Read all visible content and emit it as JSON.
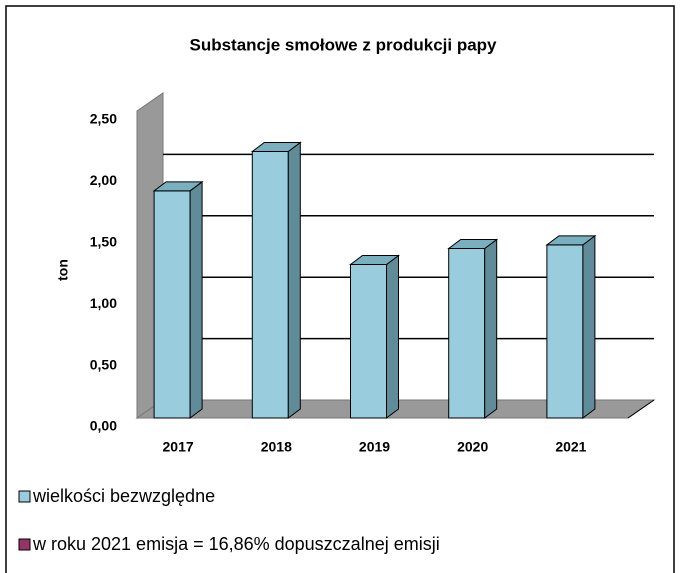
{
  "chart_data": {
    "type": "bar3d",
    "title": "Substancje smołowe z produkcji papy",
    "y_label": "ton",
    "categories": [
      "2017",
      "2018",
      "2019",
      "2020",
      "2021"
    ],
    "series": [
      {
        "name": "wielkości bezwzględne",
        "color": "#99ccdd",
        "values": [
          1.85,
          2.17,
          1.25,
          1.38,
          1.41
        ]
      },
      {
        "name": "w roku 2021 emisja = 16,86% dopuszczalnej emisji",
        "color": "#993366",
        "values": [
          null,
          null,
          null,
          null,
          null
        ]
      }
    ],
    "ylim": [
      0,
      2.5
    ],
    "yticks": [
      {
        "value": 0,
        "label": "0,00"
      },
      {
        "value": 0.5,
        "label": "0,50"
      },
      {
        "value": 1,
        "label": "1,00"
      },
      {
        "value": 1.5,
        "label": "1,50"
      },
      {
        "value": 2,
        "label": "2,00"
      },
      {
        "value": 2.5,
        "label": "2,50"
      }
    ],
    "grid": true
  }
}
